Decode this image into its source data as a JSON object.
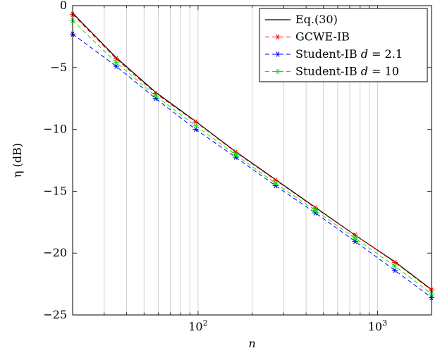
{
  "chart_data": {
    "type": "line",
    "title": "",
    "xlabel": "n",
    "ylabel": "η (dB)",
    "xscale": "log",
    "xlim": [
      20,
      2000
    ],
    "ylim": [
      -25,
      0
    ],
    "grid": "x-only (major and minor log gridlines)",
    "legend_position": "top-right",
    "x_tick_labels": [
      {
        "value": 100,
        "base": "10",
        "exp": "2"
      },
      {
        "value": 1000,
        "base": "10",
        "exp": "3"
      }
    ],
    "y_ticks": [
      0,
      -5,
      -10,
      -15,
      -20,
      -25
    ],
    "y_tick_labels": [
      "0",
      "−5",
      "−10",
      "−15",
      "−20",
      "−25"
    ],
    "x": [
      20,
      35,
      58,
      97,
      162,
      270,
      450,
      750,
      1250,
      2000
    ],
    "series": [
      {
        "name": "Eq.(30)",
        "color": "#000000",
        "style": "solid",
        "marker": "none",
        "values": [
          -0.6,
          -4.2,
          -7.0,
          -9.35,
          -11.8,
          -14.05,
          -16.3,
          -18.55,
          -20.7,
          -22.95
        ]
      },
      {
        "name": "GCWE-IB",
        "color": "#ff0000",
        "style": "dashed",
        "marker": "asterisk",
        "values": [
          -0.7,
          -4.3,
          -7.1,
          -9.4,
          -11.85,
          -14.1,
          -16.35,
          -18.55,
          -20.75,
          -23.0
        ]
      },
      {
        "name": "Student-IB",
        "legend_label": {
          "prefix": "Student-IB ",
          "var": "d",
          "rest": " = 2.1"
        },
        "color": "#0000ff",
        "style": "dashed",
        "marker": "asterisk",
        "values": [
          -2.3,
          -4.9,
          -7.5,
          -10.0,
          -12.25,
          -14.55,
          -16.75,
          -19.05,
          -21.4,
          -23.6
        ]
      },
      {
        "name": "Student-IB",
        "legend_label": {
          "prefix": "Student-IB ",
          "var": "d",
          "rest": " = 10"
        },
        "color": "#00ee00",
        "style": "dashed",
        "marker": "asterisk",
        "values": [
          -1.2,
          -4.6,
          -7.3,
          -9.7,
          -12.05,
          -14.35,
          -16.55,
          -18.8,
          -21.05,
          -23.3
        ]
      }
    ]
  }
}
